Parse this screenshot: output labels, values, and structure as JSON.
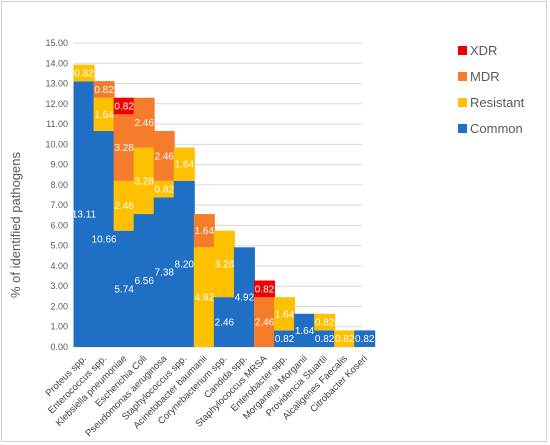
{
  "chart_data": {
    "type": "bar",
    "stacked": true,
    "title": "",
    "xlabel": "",
    "ylabel": "% of identified pathogens",
    "ylim": [
      0,
      15
    ],
    "yticks": [
      "0.00",
      "1.00",
      "2.00",
      "3.00",
      "4.00",
      "5.00",
      "6.00",
      "7.00",
      "8.00",
      "9.00",
      "10.00",
      "11.00",
      "12.00",
      "13.00",
      "14.00",
      "15.00"
    ],
    "grid": true,
    "legend_position": "right",
    "categories": [
      "Proteus spp.",
      "Enterococcus spp.",
      "Klebsiella pneumoniae",
      "Escherichia Coli",
      "Pseudomonas aeruginosa",
      "Staphylococcus spp.",
      "Acinetobacter baumanii",
      "Corynebacterium spp.",
      "Candida spp.",
      "Staphylococcus MRSA",
      "Enterobacter spp.",
      "Morganella Morganii",
      "Providencia Stuartii",
      "Alcaligenes Faecalis",
      "Citrobacter Koseri"
    ],
    "series": [
      {
        "name": "Common",
        "color": "#1f6fc5",
        "values": [
          13.11,
          10.66,
          5.74,
          6.56,
          7.38,
          8.2,
          0,
          2.46,
          4.92,
          0,
          0.82,
          1.64,
          0.82,
          0,
          0.82
        ],
        "labels": [
          "13.11",
          "10.66",
          "5.74",
          "6.56",
          "7.38",
          "8.20",
          "",
          "2.46",
          "4.92",
          "",
          "0.82",
          "1.64",
          "0.82",
          "",
          "0.82"
        ]
      },
      {
        "name": "Resistant",
        "color": "#ffc000",
        "values": [
          0.82,
          1.64,
          2.46,
          3.28,
          0.82,
          1.64,
          4.92,
          3.28,
          0,
          0,
          1.64,
          0,
          0.82,
          0.82,
          0
        ],
        "labels": [
          "0.82",
          "1.64",
          "2.46",
          "3.28",
          "0.82",
          "1.64",
          "4.92",
          "3.28",
          "",
          "",
          "1.64",
          "",
          "0.82",
          "0.82",
          ""
        ]
      },
      {
        "name": "MDR",
        "color": "#f57c2a",
        "values": [
          0,
          0.82,
          3.28,
          2.46,
          2.46,
          0,
          1.64,
          0,
          0,
          2.46,
          0,
          0,
          0,
          0,
          0
        ],
        "labels": [
          "",
          "0.82",
          "3.28",
          "2.46",
          "2.46",
          "",
          "1.64",
          "",
          "",
          "2.46",
          "",
          "",
          "",
          "",
          ""
        ]
      },
      {
        "name": "XDR",
        "color": "#ee0000",
        "values": [
          0,
          0,
          0.82,
          0,
          0,
          0,
          0,
          0,
          0,
          0.82,
          0,
          0,
          0,
          0,
          0
        ],
        "labels": [
          "",
          "",
          "0.82",
          "",
          "",
          "",
          "",
          "",
          "",
          "0.82",
          "",
          "",
          "",
          "",
          ""
        ]
      }
    ],
    "legend_order": [
      "XDR",
      "MDR",
      "Resistant",
      "Common"
    ]
  }
}
